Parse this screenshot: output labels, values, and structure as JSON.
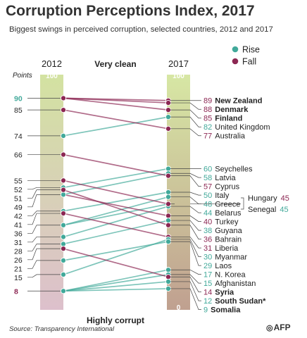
{
  "title": "Corruption Perceptions Index, 2017",
  "subtitle": "Biggest swings in perceived corruption, selected countries,  2012 and 2017",
  "source": "Source: Transparency International",
  "logo": "AFP",
  "colors": {
    "rise": "#41a99a",
    "fall": "#8c2753",
    "bar_top": "#d3e2a1",
    "bar_bottom": "#ddc0cc",
    "bar2_top": "#d7e7a4",
    "bar2_bottom": "#c0a090",
    "text": "#222222"
  },
  "chart_data": {
    "type": "slope",
    "x": [
      "2012",
      "2017"
    ],
    "ylim": [
      0,
      100
    ],
    "y_axis_label": "Points",
    "top_label": "Very clean",
    "bottom_label": "Highly corrupt",
    "legend": [
      {
        "key": "rise",
        "label": "Rise"
      },
      {
        "key": "fall",
        "label": "Fall"
      }
    ],
    "bar_ends_2012": {
      "top": "100"
    },
    "bar_ends_2017": {
      "top": "100",
      "bottom": "0"
    },
    "ticks_2012": [
      "90",
      "85",
      "74",
      "66",
      "55",
      "52",
      "51",
      "49",
      "42",
      "41",
      "36",
      "31",
      "28",
      "26",
      "21",
      "15",
      "8"
    ],
    "countries": [
      {
        "name": "New Zealand",
        "v2012": 90,
        "v2017": 89,
        "change": "fall",
        "bold": true
      },
      {
        "name": "Denmark",
        "v2012": 90,
        "v2017": 88,
        "change": "fall",
        "bold": true
      },
      {
        "name": "Finland",
        "v2012": 90,
        "v2017": 85,
        "change": "fall",
        "bold": true
      },
      {
        "name": "United Kingdom",
        "v2012": 74,
        "v2017": 82,
        "change": "rise",
        "bold": false
      },
      {
        "name": "Australia",
        "v2012": 85,
        "v2017": 77,
        "change": "fall",
        "bold": false
      },
      {
        "name": "Seychelles",
        "v2012": 52,
        "v2017": 60,
        "change": "rise",
        "bold": false
      },
      {
        "name": "Latvia",
        "v2012": 49,
        "v2017": 58,
        "change": "rise",
        "bold": false
      },
      {
        "name": "Cyprus",
        "v2012": 66,
        "v2017": 57,
        "change": "fall",
        "bold": false
      },
      {
        "name": "Italy",
        "v2012": 42,
        "v2017": 50,
        "change": "rise",
        "bold": false
      },
      {
        "name": "Greece",
        "v2012": 36,
        "v2017": 48,
        "change": "rise",
        "bold": false
      },
      {
        "name": "Hungary",
        "v2012": 55,
        "v2017": 45,
        "change": "fall",
        "bold": false
      },
      {
        "name": "Senegal",
        "v2012": 36,
        "v2017": 45,
        "change": "rise",
        "bold": false
      },
      {
        "name": "Belarus",
        "v2012": 31,
        "v2017": 44,
        "change": "rise",
        "bold": false
      },
      {
        "name": "Turkey",
        "v2012": 49,
        "v2017": 40,
        "change": "fall",
        "bold": false
      },
      {
        "name": "Guyana",
        "v2012": 28,
        "v2017": 38,
        "change": "rise",
        "bold": false
      },
      {
        "name": "Bahrain",
        "v2012": 51,
        "v2017": 36,
        "change": "fall",
        "bold": false
      },
      {
        "name": "Liberia",
        "v2012": 41,
        "v2017": 31,
        "change": "fall",
        "bold": false
      },
      {
        "name": "Myanmar",
        "v2012": 15,
        "v2017": 30,
        "change": "rise",
        "bold": false
      },
      {
        "name": "Laos",
        "v2012": 21,
        "v2017": 29,
        "change": "rise",
        "bold": false
      },
      {
        "name": "N. Korea",
        "v2012": 8,
        "v2017": 17,
        "change": "rise",
        "bold": false
      },
      {
        "name": "Afghanistan",
        "v2012": 8,
        "v2017": 15,
        "change": "rise",
        "bold": false
      },
      {
        "name": "Syria",
        "v2012": 26,
        "v2017": 14,
        "change": "fall",
        "bold": true
      },
      {
        "name": "South Sudan*",
        "v2012": 8,
        "v2017": 12,
        "change": "rise",
        "bold": true
      },
      {
        "name": "Somalia",
        "v2012": 8,
        "v2017": 9,
        "change": "rise",
        "bold": true
      }
    ]
  }
}
